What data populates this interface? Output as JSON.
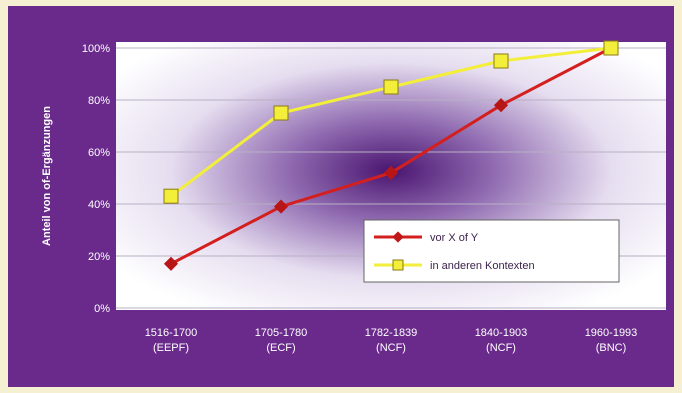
{
  "chart_data": {
    "type": "line",
    "ylabel": "Anteil von of-Ergänzungen",
    "yticks": [
      "0%",
      "20%",
      "40%",
      "60%",
      "80%",
      "100%"
    ],
    "ylim": [
      0,
      100
    ],
    "categories": [
      [
        "1516-1700",
        "(EEPF)"
      ],
      [
        "1705-1780",
        "(ECF)"
      ],
      [
        "1782-1839",
        "(NCF)"
      ],
      [
        "1840-1903",
        "(NCF)"
      ],
      [
        "1960-1993",
        "(BNC)"
      ]
    ],
    "series": [
      {
        "name": "vor X of Y",
        "color": "#d41f1f",
        "marker": "diamond",
        "values": [
          17,
          39,
          52,
          78,
          100
        ]
      },
      {
        "name": "in anderen Kontexten",
        "color": "#f2ee3a",
        "marker": "square",
        "values": [
          43,
          75,
          85,
          95,
          100
        ]
      }
    ],
    "grid": true,
    "legend_position": "lower-right inside plot"
  }
}
